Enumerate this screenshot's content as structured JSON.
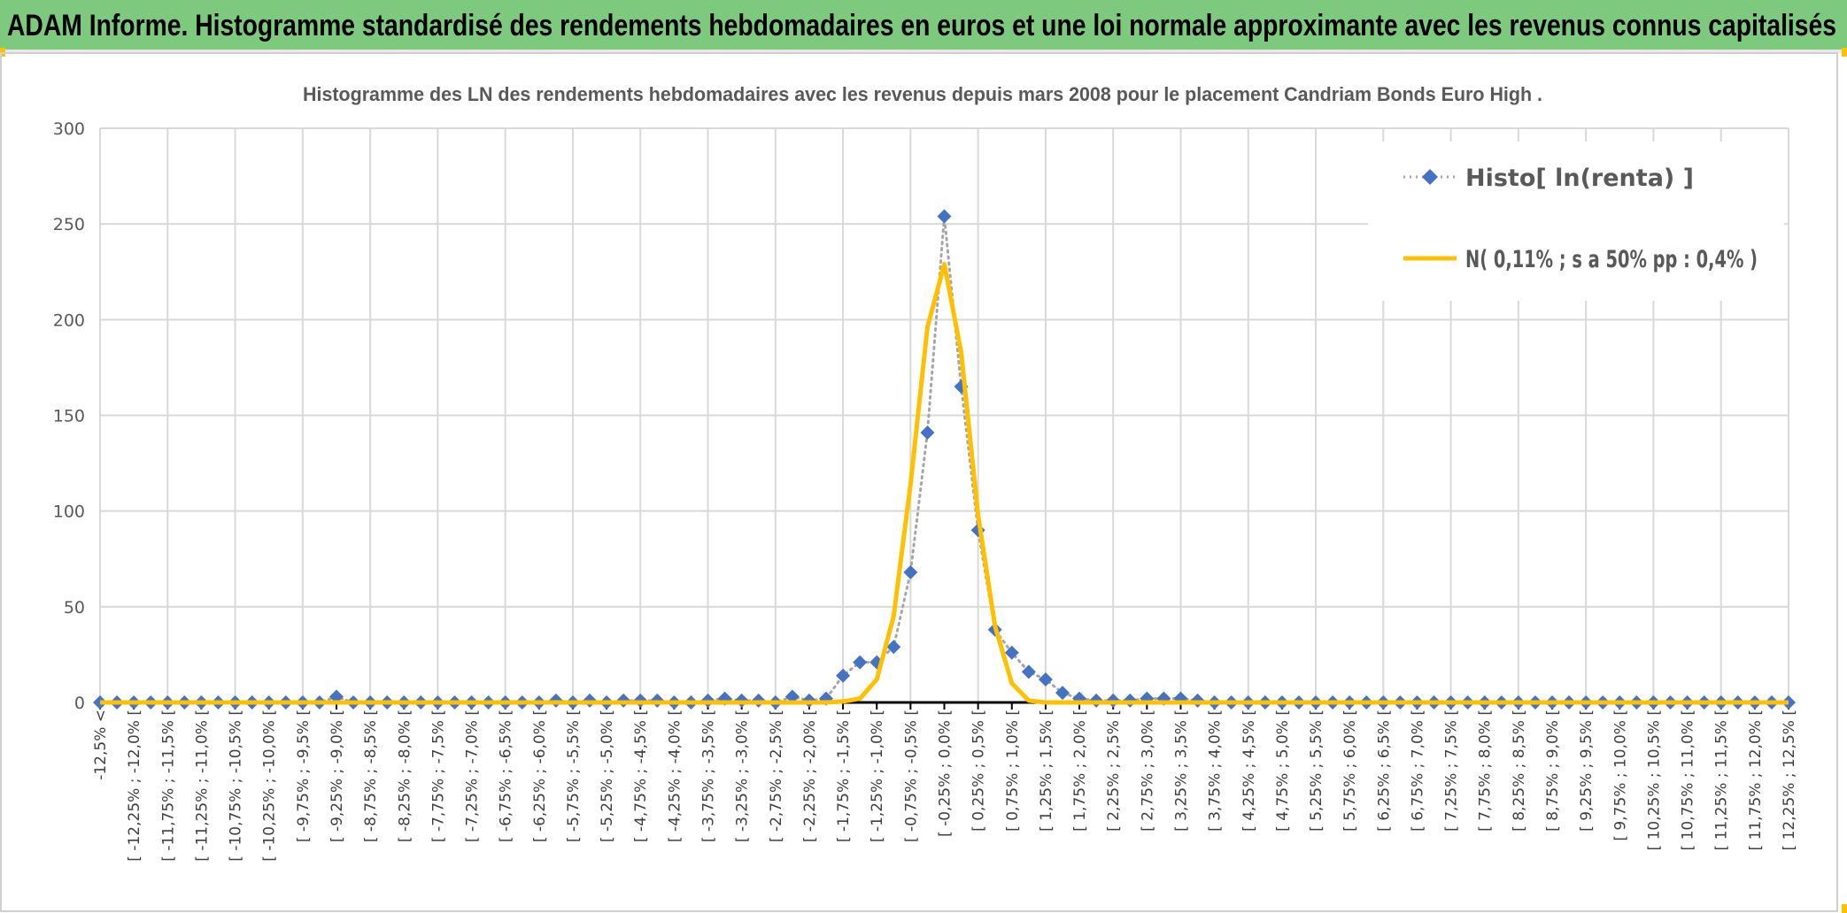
{
  "header": {
    "title": "ADAM Informe. Histogramme standardisé des rendements hebdomadaires en euros et une loi normale approximante avec les revenus connus capitalisés"
  },
  "colors": {
    "header_bg": "#7dc97d",
    "frame_accent": "#ffc000",
    "histo": "#4472c4",
    "normal": "#ffc000",
    "connector": "#a6a6a6",
    "text": "#595959"
  },
  "chart_data": {
    "type": "line",
    "title": "Histogramme des LN des rendements hebdomadaires avec les revenus depuis mars 2008 pour le placement Candriam Bonds Euro High .",
    "ylim": [
      0,
      300
    ],
    "yticks": [
      "0",
      "50",
      "100",
      "150",
      "200",
      "250",
      "300"
    ],
    "grid": true,
    "legend_position": "top-right",
    "x_tick_labels": [
      "-12,5% <",
      "[ -12,25% ; -12,0% [",
      "[ -11,75% ; -11,5% [",
      "[ -11,25% ; -11,0% [",
      "[ -10,75% ; -10,5% [",
      "[ -10,25% ; -10,0% [",
      "[ -9,75% ; -9,5% [",
      "[ -9,25% ; -9,0% [",
      "[ -8,75% ; -8,5% [",
      "[ -8,25% ; -8,0% [",
      "[ -7,75% ; -7,5% [",
      "[ -7,25% ; -7,0% [",
      "[ -6,75% ; -6,5% [",
      "[ -6,25% ; -6,0% [",
      "[ -5,75% ; -5,5% [",
      "[ -5,25% ; -5,0% [",
      "[ -4,75% ; -4,5% [",
      "[ -4,25% ; -4,0% [",
      "[ -3,75% ; -3,5% [",
      "[ -3,25% ; -3,0% [",
      "[ -2,75% ; -2,5% [",
      "[ -2,25% ; -2,0% [",
      "[ -1,75% ; -1,5% [",
      "[ -1,25% ; -1,0% [",
      "[ -0,75% ; -0,5% [",
      "[ -0,25% ; 0,0% [",
      "[ 0,25% ; 0,5% [",
      "[ 0,75% ; 1,0% [",
      "[ 1,25% ; 1,5% [",
      "[ 1,75% ; 2,0% [",
      "[ 2,25% ; 2,5% [",
      "[ 2,75% ; 3,0% [",
      "[ 3,25% ; 3,5% [",
      "[ 3,75% ; 4,0% [",
      "[ 4,25% ; 4,5% [",
      "[ 4,75% ; 5,0% [",
      "[ 5,25% ; 5,5% [",
      "[ 5,75% ; 6,0% [",
      "[ 6,25% ; 6,5% [",
      "[ 6,75% ; 7,0% [",
      "[ 7,25% ; 7,5% [",
      "[ 7,75% ; 8,0% [",
      "[ 8,25% ; 8,5% [",
      "[ 8,75% ; 9,0% [",
      "[ 9,25% ; 9,5% [",
      "[ 9,75% ; 10,0% [",
      "[ 10,25% ; 10,5% [",
      "[ 10,75% ; 11,0% [",
      "[ 11,25% ; 11,5% [",
      "[ 11,75% ; 12,0% [",
      "[ 12,25% ; 12,5% ["
    ],
    "series": [
      {
        "name": "Histo[ ln(renta) ]",
        "style": "dotted-line-diamond-markers",
        "values": [
          0,
          0,
          0,
          0,
          0,
          0,
          0,
          0,
          0,
          0,
          0,
          0,
          0,
          0,
          3,
          0,
          0,
          0,
          0,
          0,
          0,
          0,
          0,
          0,
          0,
          0,
          0,
          1,
          0,
          1,
          0,
          1,
          1,
          1,
          0,
          0,
          1,
          2,
          1,
          1,
          0,
          3,
          1,
          2,
          14,
          21,
          21,
          29,
          68,
          141,
          254,
          165,
          90,
          38,
          26,
          16,
          12,
          5,
          2,
          1,
          1,
          1,
          2,
          2,
          2,
          1,
          0,
          0,
          0,
          0,
          0,
          0,
          0,
          0,
          0,
          0,
          0,
          0,
          0,
          0,
          0,
          0,
          0,
          0,
          0,
          0,
          0,
          0,
          0,
          0,
          0,
          0,
          0,
          0,
          0,
          0,
          0,
          0,
          0,
          0,
          0
        ]
      },
      {
        "name": "N( 0,11% ; s a 50% pp : 0,4% )",
        "style": "solid-line",
        "values": [
          0,
          0,
          0,
          0,
          0,
          0,
          0,
          0,
          0,
          0,
          0,
          0,
          0,
          0,
          0,
          0,
          0,
          0,
          0,
          0,
          0,
          0,
          0,
          0,
          0,
          0,
          0,
          0,
          0,
          0,
          0,
          0,
          0,
          0,
          0,
          0,
          0,
          0,
          0,
          0,
          0,
          0,
          0,
          0,
          0.5,
          2,
          12,
          45,
          114,
          196,
          229,
          183,
          98,
          40,
          10,
          1,
          0,
          0,
          0,
          0,
          0,
          0,
          0,
          0,
          0,
          0,
          0,
          0,
          0,
          0,
          0,
          0,
          0,
          0,
          0,
          0,
          0,
          0,
          0,
          0,
          0,
          0,
          0,
          0,
          0,
          0,
          0,
          0,
          0,
          0,
          0,
          0,
          0,
          0,
          0,
          0,
          0,
          0,
          0,
          0,
          0
        ]
      }
    ]
  }
}
